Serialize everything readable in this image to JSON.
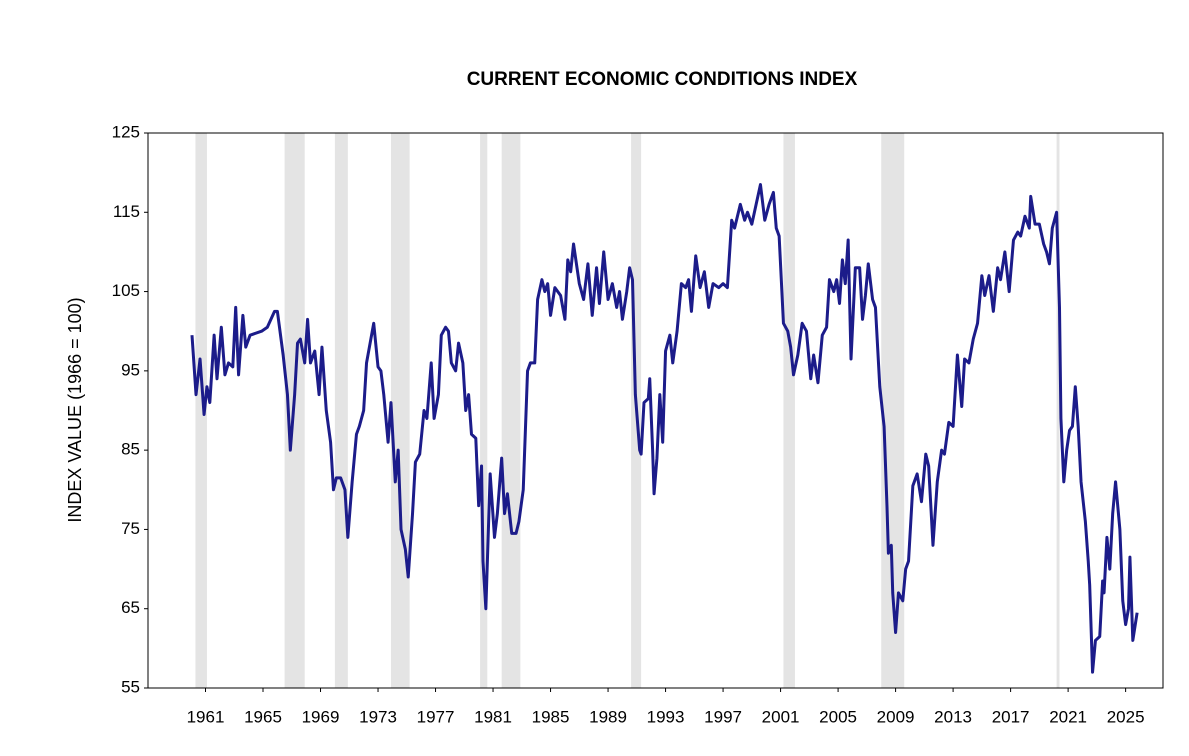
{
  "chart_data": {
    "type": "line",
    "title": "CURRENT ECONOMIC CONDITIONS INDEX",
    "y_label": "INDEX VALUE (1966 = 100)",
    "xlim": [
      1957,
      2027.6
    ],
    "ylim": [
      55,
      125
    ],
    "xticks": [
      1961,
      1965,
      1969,
      1973,
      1977,
      1981,
      1985,
      1989,
      1993,
      1997,
      2001,
      2005,
      2009,
      2013,
      2017,
      2021,
      2025
    ],
    "yticks": [
      55,
      65,
      75,
      85,
      95,
      105,
      115,
      125
    ],
    "grid": false,
    "color": "#1c1c8a",
    "shade_color": "#e4e4e4",
    "recessions": [
      [
        1960.3,
        1961.1
      ],
      [
        1966.5,
        1967.9
      ],
      [
        1970.0,
        1970.9
      ],
      [
        1973.9,
        1975.2
      ],
      [
        1980.1,
        1980.6
      ],
      [
        1981.6,
        1982.9
      ],
      [
        1990.6,
        1991.3
      ],
      [
        2001.2,
        2002.0
      ],
      [
        2008.0,
        2009.6
      ],
      [
        2020.2,
        2020.4
      ]
    ],
    "x": [
      1960.06,
      1960.34,
      1960.62,
      1960.9,
      1961.1,
      1961.3,
      1961.6,
      1961.8,
      1962.1,
      1962.35,
      1962.6,
      1962.9,
      1963.1,
      1963.3,
      1963.6,
      1963.8,
      1964.1,
      1964.9,
      1965.3,
      1965.8,
      1966.0,
      1966.4,
      1966.7,
      1966.9,
      1967.2,
      1967.4,
      1967.6,
      1967.9,
      1968.1,
      1968.3,
      1968.6,
      1968.9,
      1969.1,
      1969.4,
      1969.7,
      1969.9,
      1970.1,
      1970.4,
      1970.7,
      1970.9,
      1971.2,
      1971.5,
      1971.7,
      1972.0,
      1972.2,
      1972.5,
      1972.7,
      1973.0,
      1973.2,
      1973.4,
      1973.7,
      1973.9,
      1974.2,
      1974.4,
      1974.6,
      1974.9,
      1975.1,
      1975.4,
      1975.6,
      1975.9,
      1976.2,
      1976.4,
      1976.7,
      1976.9,
      1977.2,
      1977.4,
      1977.7,
      1977.9,
      1978.1,
      1978.4,
      1978.6,
      1978.9,
      1979.1,
      1979.3,
      1979.5,
      1979.8,
      1980.0,
      1980.2,
      1980.3,
      1980.5,
      1980.8,
      1981.1,
      1981.3,
      1981.6,
      1981.8,
      1982.0,
      1982.3,
      1982.6,
      1982.8,
      1983.1,
      1983.4,
      1983.6,
      1983.9,
      1984.1,
      1984.4,
      1984.6,
      1984.8,
      1985.0,
      1985.3,
      1985.7,
      1986.0,
      1986.2,
      1986.4,
      1986.6,
      1987.0,
      1987.3,
      1987.6,
      1987.9,
      1988.2,
      1988.4,
      1988.7,
      1989.0,
      1989.3,
      1989.6,
      1989.8,
      1990.0,
      1990.3,
      1990.5,
      1990.7,
      1990.9,
      1991.2,
      1991.3,
      1991.5,
      1991.8,
      1991.9,
      1992.1,
      1992.2,
      1992.4,
      1992.6,
      1992.8,
      1993.0,
      1993.3,
      1993.5,
      1993.8,
      1994.1,
      1994.4,
      1994.6,
      1994.8,
      1995.1,
      1995.4,
      1995.7,
      1996.0,
      1996.3,
      1996.7,
      1997.0,
      1997.3,
      1997.6,
      1997.8,
      1998.2,
      1998.5,
      1998.7,
      1999.0,
      1999.3,
      1999.6,
      1999.9,
      2000.2,
      2000.5,
      2000.7,
      2000.9,
      2001.2,
      2001.5,
      2001.7,
      2001.9,
      2002.2,
      2002.5,
      2002.8,
      2003.1,
      2003.3,
      2003.6,
      2003.9,
      2004.2,
      2004.4,
      2004.7,
      2004.9,
      2005.1,
      2005.3,
      2005.5,
      2005.7,
      2005.9,
      2006.2,
      2006.5,
      2006.7,
      2006.9,
      2007.1,
      2007.4,
      2007.6,
      2007.9,
      2008.2,
      2008.4,
      2008.5,
      2008.7,
      2008.8,
      2009.0,
      2009.2,
      2009.5,
      2009.7,
      2009.9,
      2010.2,
      2010.5,
      2010.8,
      2011.1,
      2011.3,
      2011.6,
      2011.9,
      2012.2,
      2012.4,
      2012.7,
      2013.0,
      2013.3,
      2013.6,
      2013.8,
      2014.1,
      2014.4,
      2014.7,
      2015.0,
      2015.2,
      2015.5,
      2015.8,
      2016.1,
      2016.3,
      2016.6,
      2016.9,
      2017.2,
      2017.5,
      2017.7,
      2018.0,
      2018.3,
      2018.4,
      2018.7,
      2019.0,
      2019.3,
      2019.5,
      2019.7,
      2019.9,
      2020.2,
      2020.4,
      2020.5,
      2020.7,
      2020.9,
      2021.1,
      2021.3,
      2021.5,
      2021.7,
      2021.9,
      2022.2,
      2022.4,
      2022.5,
      2022.7,
      2022.9,
      2023.2,
      2023.4,
      2023.5,
      2023.7,
      2023.9,
      2024.1,
      2024.3,
      2024.6,
      2024.8,
      2025.0,
      2025.2,
      2025.3,
      2025.5,
      2025.8
    ],
    "values": [
      99.5,
      92,
      96.5,
      89.5,
      93,
      91,
      99.5,
      94,
      100.5,
      94.5,
      96,
      95.5,
      103,
      94.5,
      102,
      98,
      99.5,
      100,
      100.5,
      102.5,
      102.5,
      97,
      92,
      85,
      92,
      98.5,
      99,
      96,
      101.5,
      96,
      97.5,
      92,
      98,
      90,
      86,
      80,
      81.5,
      81.5,
      80,
      74,
      81,
      87,
      88,
      90,
      96,
      99,
      101,
      95.5,
      95,
      92,
      86,
      91,
      81,
      85,
      75,
      72.5,
      69,
      77,
      83.5,
      84.5,
      90,
      89,
      96,
      89,
      92,
      99.5,
      100.5,
      100,
      96,
      95,
      98.5,
      96,
      90,
      92,
      87,
      86.5,
      78,
      83,
      71,
      65,
      82,
      74,
      77,
      84,
      77,
      79.5,
      74.5,
      74.5,
      76,
      80,
      95,
      96,
      96,
      104,
      106.5,
      105,
      106,
      102,
      105.5,
      104.5,
      101.5,
      109,
      107.5,
      111,
      106,
      104,
      108.5,
      102,
      108,
      103.5,
      110,
      104,
      106,
      103,
      105,
      101.5,
      105,
      108,
      106.5,
      92,
      85,
      84.5,
      91,
      91.5,
      94,
      85,
      79.5,
      84,
      92,
      86,
      97.5,
      99.5,
      96,
      100,
      106,
      105.5,
      106.5,
      102.5,
      109.5,
      105.5,
      107.5,
      103,
      106,
      105.5,
      106,
      105.5,
      114,
      113,
      116,
      114,
      115,
      113.5,
      116,
      118.5,
      114,
      116,
      117.5,
      113,
      112,
      101,
      100,
      98,
      94.5,
      97,
      101,
      100,
      94,
      97,
      93.5,
      99.5,
      100.5,
      106.5,
      105,
      106.5,
      103.5,
      109,
      106,
      111.5,
      96.5,
      108,
      108,
      101.5,
      104.5,
      108.5,
      104,
      103,
      93,
      88,
      78,
      72,
      73,
      67,
      62,
      67,
      66,
      70,
      71,
      80.5,
      82,
      78.5,
      84.5,
      83,
      73,
      81,
      85,
      84.5,
      88.5,
      88,
      97,
      90.5,
      96.5,
      96,
      99,
      101,
      107,
      104.5,
      107,
      102.5,
      108,
      106.5,
      110,
      105,
      111.5,
      112.5,
      112,
      114.5,
      113,
      117,
      113.5,
      113.5,
      111,
      110,
      108.5,
      113,
      115,
      103,
      89,
      81,
      85,
      87.5,
      88,
      93,
      88,
      81,
      76,
      71,
      68,
      57,
      61,
      61.5,
      68.5,
      67,
      74,
      70,
      77,
      81,
      75,
      66,
      63,
      65,
      71.5,
      61,
      64.5
    ]
  }
}
